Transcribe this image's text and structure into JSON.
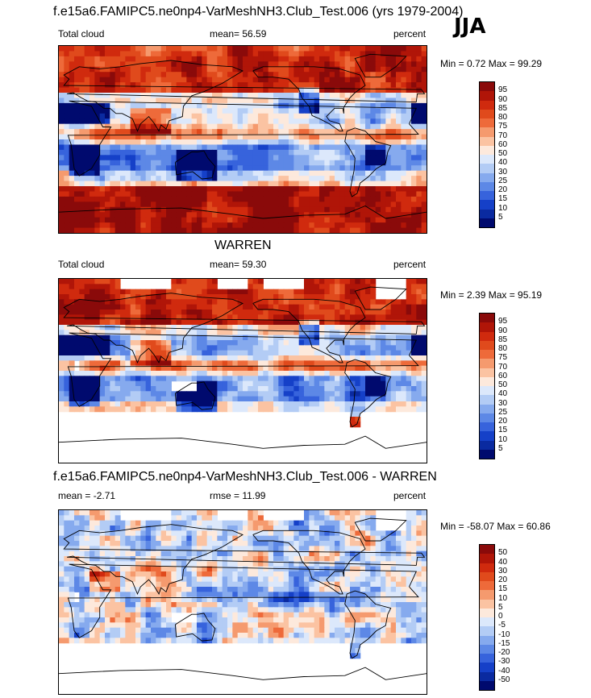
{
  "main_title": "f.e15a6.FAMIPC5.ne0np4-VarMeshNH3.Club_Test.006 (yrs 1979-2004)",
  "season": "JJA",
  "panels": [
    {
      "title": "",
      "left_label": "Total cloud",
      "center_label": "mean=  56.59",
      "right_label": "percent",
      "minmax": "Min =   0.72 Max =  99.29",
      "levels": [
        "95",
        "90",
        "85",
        "80",
        "75",
        "70",
        "60",
        "50",
        "40",
        "30",
        "25",
        "20",
        "15",
        "10",
        "5"
      ],
      "colors": [
        "#8a0a0a",
        "#b01508",
        "#d02a0e",
        "#e04a1c",
        "#ee6a3a",
        "#f59a6e",
        "#fbc3a2",
        "#fde9dc",
        "#dce8fb",
        "#b3ccf5",
        "#86aaee",
        "#5d88e6",
        "#3763dc",
        "#1540c8",
        "#0a2aa0",
        "#000a6e"
      ]
    },
    {
      "title": "WARREN",
      "left_label": "Total cloud",
      "center_label": "mean=  59.30",
      "right_label": "percent",
      "minmax": "Min =   2.39 Max =  95.19",
      "levels": [
        "95",
        "90",
        "85",
        "80",
        "75",
        "70",
        "60",
        "50",
        "40",
        "30",
        "25",
        "20",
        "15",
        "10",
        "5"
      ],
      "colors": [
        "#8a0a0a",
        "#b01508",
        "#d02a0e",
        "#e04a1c",
        "#ee6a3a",
        "#f59a6e",
        "#fbc3a2",
        "#fde9dc",
        "#dce8fb",
        "#b3ccf5",
        "#86aaee",
        "#5d88e6",
        "#3763dc",
        "#1540c8",
        "#0a2aa0",
        "#000a6e"
      ]
    },
    {
      "title": "f.e15a6.FAMIPC5.ne0np4-VarMeshNH3.Club_Test.006 - WARREN",
      "left_label": "mean =  -2.71",
      "center_label": "rmse =  11.99",
      "right_label": "percent",
      "minmax": "Min = -58.07 Max =  60.86",
      "levels": [
        "50",
        "40",
        "30",
        "20",
        "15",
        "10",
        "5",
        "0",
        "-5",
        "-10",
        "-15",
        "-20",
        "-30",
        "-40",
        "-50"
      ],
      "colors": [
        "#8a0a0a",
        "#b01508",
        "#d02a0e",
        "#e04a1c",
        "#ee6a3a",
        "#f59a6e",
        "#fbc3a2",
        "#fde9dc",
        "#dce8fb",
        "#b3ccf5",
        "#86aaee",
        "#5d88e6",
        "#3763dc",
        "#1540c8",
        "#0a2aa0",
        "#000a6e"
      ]
    }
  ]
}
